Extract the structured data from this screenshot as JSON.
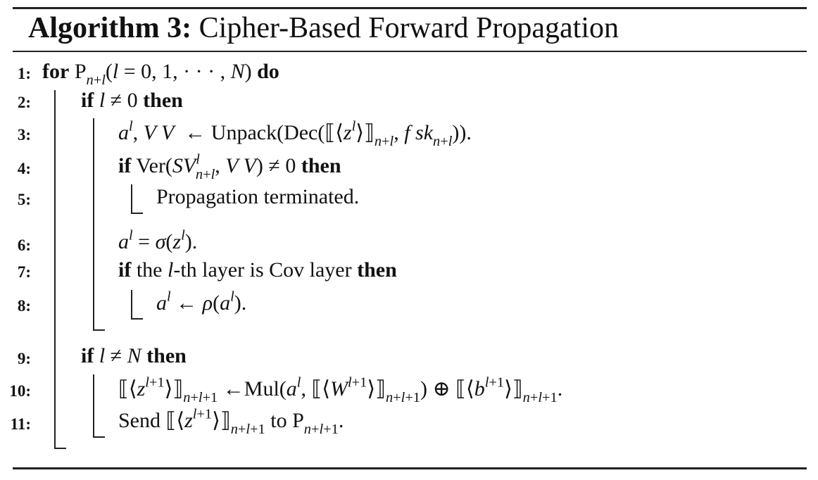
{
  "algorithm": {
    "label": "Algorithm 3:",
    "name": "Cipher-Based Forward Propagation"
  },
  "line_numbers": [
    "1:",
    "2:",
    "3:",
    "4:",
    "5:",
    "6:",
    "7:",
    "8:",
    "9:",
    "10:",
    "11:"
  ],
  "keywords": {
    "for": "for",
    "do": "do",
    "if": "if",
    "then": "then"
  },
  "lines": {
    "l5": "Propagation terminated.",
    "l7_pre": "the",
    "l7_mid": "-th layer is Cov layer",
    "l11_send": "Send",
    "l11_to": "to"
  }
}
